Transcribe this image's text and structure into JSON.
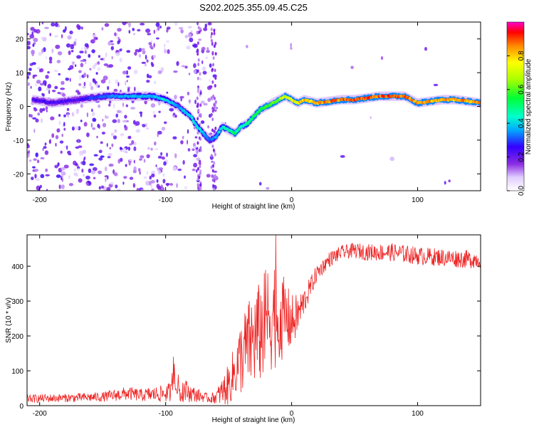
{
  "title": "S202.2025.355.09.45.C25",
  "chart_data": [
    {
      "type": "heatmap",
      "xlabel": "Height of straight line (km)",
      "ylabel": "Frequency (Hz)",
      "xlim": [
        -210,
        150
      ],
      "ylim": [
        -25,
        25
      ],
      "xticks": [
        -200,
        -100,
        0,
        100
      ],
      "yticks": [
        20,
        10,
        0,
        -10,
        -20
      ],
      "colorbar": {
        "label": "Normalized spectral amplitude",
        "range": [
          0,
          1
        ],
        "ticks": [
          "0.0",
          "0.2",
          "0.4",
          "0.6",
          "0.8"
        ],
        "tick_values": [
          0.0,
          0.2,
          0.4,
          0.6,
          0.8
        ]
      },
      "ridge": {
        "x": [
          -205,
          -190,
          -170,
          -150,
          -130,
          -110,
          -100,
          -90,
          -80,
          -75,
          -70,
          -65,
          -60,
          -55,
          -50,
          -45,
          -40,
          -35,
          -30,
          -25,
          -20,
          -15,
          -10,
          -5,
          0,
          5,
          10,
          20,
          30,
          40,
          50,
          60,
          70,
          80,
          90,
          100,
          110,
          120,
          130,
          140,
          150
        ],
        "freq": [
          2,
          1,
          2,
          3,
          3,
          3,
          2,
          0,
          -3,
          -6,
          -8,
          -10,
          -9,
          -6,
          -7,
          -8,
          -6,
          -5,
          -3,
          -1,
          0,
          1,
          2,
          3,
          2,
          1,
          2,
          1,
          1.5,
          2,
          2,
          2.5,
          3,
          3,
          3,
          1,
          1.5,
          2,
          2,
          1.5,
          1
        ],
        "amp": [
          0.25,
          0.25,
          0.25,
          0.35,
          0.4,
          0.4,
          0.45,
          0.35,
          0.45,
          0.45,
          0.4,
          0.35,
          0.4,
          0.45,
          0.5,
          0.55,
          0.5,
          0.5,
          0.55,
          0.55,
          0.6,
          0.65,
          0.7,
          0.75,
          0.8,
          0.85,
          0.85,
          0.9,
          0.95,
          0.95,
          0.95,
          0.95,
          0.95,
          0.95,
          0.95,
          0.9,
          0.9,
          0.9,
          0.9,
          0.9,
          0.9
        ]
      },
      "noise_region_x": [
        -210,
        -60
      ]
    },
    {
      "type": "line",
      "xlabel": "Height of straight line (km)",
      "ylabel": "SNR (10 * v/v)",
      "xlim": [
        -210,
        150
      ],
      "ylim": [
        0,
        490
      ],
      "xticks": [
        -200,
        -100,
        0,
        100
      ],
      "yticks": [
        0,
        100,
        200,
        300,
        400
      ],
      "series": [
        {
          "name": "SNR",
          "color": "#ee2222",
          "x": [
            -210,
            -180,
            -150,
            -130,
            -120,
            -100,
            -95,
            -90,
            -85,
            -80,
            -75,
            -70,
            -65,
            -60,
            -55,
            -50,
            -45,
            -40,
            -35,
            -30,
            -25,
            -20,
            -15,
            -10,
            -5,
            0,
            5,
            10,
            15,
            20,
            25,
            30,
            40,
            50,
            60,
            80,
            100,
            120,
            140,
            150
          ],
          "mean": [
            20,
            22,
            25,
            35,
            30,
            35,
            40,
            50,
            45,
            35,
            30,
            25,
            20,
            25,
            40,
            60,
            100,
            140,
            170,
            190,
            210,
            240,
            270,
            260,
            250,
            240,
            260,
            300,
            340,
            380,
            400,
            420,
            440,
            445,
            440,
            440,
            430,
            425,
            420,
            420
          ],
          "spread": [
            12,
            12,
            14,
            20,
            18,
            25,
            30,
            40,
            35,
            25,
            20,
            15,
            12,
            20,
            40,
            60,
            80,
            110,
            130,
            140,
            150,
            160,
            170,
            140,
            110,
            80,
            60,
            40,
            30,
            25,
            22,
            22,
            20,
            22,
            24,
            26,
            26,
            26,
            26,
            26
          ]
        }
      ]
    }
  ]
}
